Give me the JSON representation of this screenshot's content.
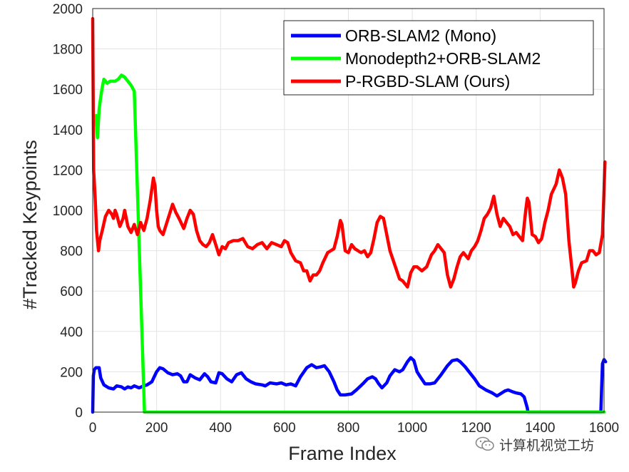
{
  "chart_data": {
    "type": "line",
    "title": "",
    "xlabel": "Frame Index",
    "ylabel": "#Tracked Keypoints",
    "xlim": [
      0,
      1600
    ],
    "ylim": [
      0,
      2000
    ],
    "xticks": [
      0,
      200,
      400,
      600,
      800,
      1000,
      1200,
      1400,
      1600
    ],
    "yticks": [
      0,
      200,
      400,
      600,
      800,
      1000,
      1200,
      1400,
      1600,
      1800,
      2000
    ],
    "grid": true,
    "legend_position": "top-right",
    "series": [
      {
        "name": "ORB-SLAM2 (Mono)",
        "color": "#0000ff",
        "points": [
          [
            0,
            0
          ],
          [
            2,
            180
          ],
          [
            5,
            210
          ],
          [
            10,
            220
          ],
          [
            20,
            220
          ],
          [
            25,
            170
          ],
          [
            35,
            135
          ],
          [
            50,
            120
          ],
          [
            65,
            115
          ],
          [
            75,
            130
          ],
          [
            90,
            125
          ],
          [
            100,
            115
          ],
          [
            110,
            125
          ],
          [
            120,
            120
          ],
          [
            130,
            130
          ],
          [
            145,
            120
          ],
          [
            160,
            130
          ],
          [
            170,
            135
          ],
          [
            185,
            150
          ],
          [
            200,
            200
          ],
          [
            210,
            220
          ],
          [
            220,
            215
          ],
          [
            235,
            195
          ],
          [
            250,
            185
          ],
          [
            265,
            190
          ],
          [
            275,
            180
          ],
          [
            285,
            150
          ],
          [
            295,
            150
          ],
          [
            305,
            185
          ],
          [
            320,
            170
          ],
          [
            335,
            160
          ],
          [
            350,
            190
          ],
          [
            360,
            175
          ],
          [
            370,
            150
          ],
          [
            385,
            145
          ],
          [
            395,
            195
          ],
          [
            405,
            190
          ],
          [
            420,
            165
          ],
          [
            435,
            150
          ],
          [
            450,
            185
          ],
          [
            465,
            195
          ],
          [
            480,
            165
          ],
          [
            495,
            150
          ],
          [
            510,
            140
          ],
          [
            530,
            135
          ],
          [
            540,
            130
          ],
          [
            555,
            145
          ],
          [
            575,
            140
          ],
          [
            590,
            145
          ],
          [
            605,
            135
          ],
          [
            620,
            140
          ],
          [
            635,
            130
          ],
          [
            650,
            175
          ],
          [
            670,
            220
          ],
          [
            685,
            235
          ],
          [
            700,
            220
          ],
          [
            715,
            225
          ],
          [
            725,
            230
          ],
          [
            740,
            200
          ],
          [
            755,
            150
          ],
          [
            765,
            110
          ],
          [
            775,
            85
          ],
          [
            790,
            85
          ],
          [
            810,
            90
          ],
          [
            825,
            110
          ],
          [
            845,
            140
          ],
          [
            860,
            165
          ],
          [
            875,
            175
          ],
          [
            885,
            165
          ],
          [
            895,
            140
          ],
          [
            905,
            120
          ],
          [
            920,
            145
          ],
          [
            930,
            180
          ],
          [
            945,
            210
          ],
          [
            960,
            200
          ],
          [
            970,
            210
          ],
          [
            985,
            250
          ],
          [
            995,
            270
          ],
          [
            1005,
            255
          ],
          [
            1015,
            200
          ],
          [
            1025,
            175
          ],
          [
            1040,
            140
          ],
          [
            1055,
            140
          ],
          [
            1070,
            145
          ],
          [
            1090,
            185
          ],
          [
            1110,
            230
          ],
          [
            1125,
            255
          ],
          [
            1140,
            260
          ],
          [
            1150,
            250
          ],
          [
            1165,
            225
          ],
          [
            1180,
            195
          ],
          [
            1195,
            165
          ],
          [
            1210,
            130
          ],
          [
            1230,
            110
          ],
          [
            1250,
            95
          ],
          [
            1265,
            80
          ],
          [
            1280,
            95
          ],
          [
            1290,
            105
          ],
          [
            1300,
            110
          ],
          [
            1315,
            100
          ],
          [
            1325,
            95
          ],
          [
            1340,
            90
          ],
          [
            1350,
            75
          ],
          [
            1360,
            20
          ],
          [
            1362,
            0
          ],
          [
            1590,
            0
          ],
          [
            1595,
            240
          ],
          [
            1600,
            260
          ],
          [
            1605,
            250
          ]
        ]
      },
      {
        "name": "Monodepth2+ORB-SLAM2",
        "color": "#00ff00",
        "points": [
          [
            10,
            1470
          ],
          [
            15,
            1360
          ],
          [
            20,
            1500
          ],
          [
            25,
            1560
          ],
          [
            30,
            1610
          ],
          [
            35,
            1650
          ],
          [
            45,
            1630
          ],
          [
            55,
            1640
          ],
          [
            70,
            1640
          ],
          [
            80,
            1650
          ],
          [
            90,
            1670
          ],
          [
            100,
            1660
          ],
          [
            110,
            1640
          ],
          [
            120,
            1620
          ],
          [
            130,
            1590
          ],
          [
            140,
            1100
          ],
          [
            150,
            600
          ],
          [
            158,
            200
          ],
          [
            162,
            0
          ],
          [
            1600,
            0
          ]
        ]
      },
      {
        "name": "P-RGBD-SLAM (Ours)",
        "color": "#ff0000",
        "points": [
          [
            0,
            1950
          ],
          [
            3,
            1200
          ],
          [
            8,
            1050
          ],
          [
            12,
            900
          ],
          [
            18,
            800
          ],
          [
            22,
            850
          ],
          [
            30,
            900
          ],
          [
            40,
            970
          ],
          [
            50,
            1000
          ],
          [
            60,
            980
          ],
          [
            65,
            960
          ],
          [
            70,
            1000
          ],
          [
            75,
            980
          ],
          [
            80,
            950
          ],
          [
            85,
            920
          ],
          [
            95,
            960
          ],
          [
            100,
            1000
          ],
          [
            105,
            960
          ],
          [
            110,
            920
          ],
          [
            120,
            890
          ],
          [
            130,
            930
          ],
          [
            140,
            880
          ],
          [
            150,
            940
          ],
          [
            160,
            900
          ],
          [
            170,
            960
          ],
          [
            180,
            1050
          ],
          [
            190,
            1160
          ],
          [
            195,
            1120
          ],
          [
            200,
            1000
          ],
          [
            205,
            920
          ],
          [
            210,
            900
          ],
          [
            220,
            880
          ],
          [
            230,
            930
          ],
          [
            240,
            980
          ],
          [
            250,
            1030
          ],
          [
            260,
            990
          ],
          [
            270,
            960
          ],
          [
            285,
            910
          ],
          [
            295,
            960
          ],
          [
            305,
            1000
          ],
          [
            315,
            980
          ],
          [
            325,
            900
          ],
          [
            335,
            850
          ],
          [
            345,
            830
          ],
          [
            355,
            820
          ],
          [
            365,
            840
          ],
          [
            375,
            880
          ],
          [
            385,
            830
          ],
          [
            395,
            780
          ],
          [
            405,
            820
          ],
          [
            415,
            810
          ],
          [
            425,
            840
          ],
          [
            440,
            850
          ],
          [
            455,
            850
          ],
          [
            470,
            860
          ],
          [
            485,
            820
          ],
          [
            500,
            810
          ],
          [
            515,
            830
          ],
          [
            530,
            840
          ],
          [
            545,
            810
          ],
          [
            560,
            840
          ],
          [
            575,
            830
          ],
          [
            590,
            820
          ],
          [
            600,
            850
          ],
          [
            610,
            840
          ],
          [
            620,
            790
          ],
          [
            635,
            750
          ],
          [
            650,
            740
          ],
          [
            660,
            700
          ],
          [
            670,
            700
          ],
          [
            680,
            650
          ],
          [
            690,
            680
          ],
          [
            700,
            680
          ],
          [
            710,
            700
          ],
          [
            720,
            740
          ],
          [
            735,
            790
          ],
          [
            745,
            800
          ],
          [
            755,
            810
          ],
          [
            765,
            870
          ],
          [
            775,
            950
          ],
          [
            780,
            930
          ],
          [
            790,
            800
          ],
          [
            800,
            790
          ],
          [
            810,
            830
          ],
          [
            820,
            810
          ],
          [
            830,
            800
          ],
          [
            840,
            790
          ],
          [
            850,
            800
          ],
          [
            860,
            770
          ],
          [
            870,
            790
          ],
          [
            880,
            860
          ],
          [
            890,
            940
          ],
          [
            900,
            970
          ],
          [
            910,
            960
          ],
          [
            920,
            880
          ],
          [
            930,
            800
          ],
          [
            945,
            730
          ],
          [
            960,
            660
          ],
          [
            970,
            650
          ],
          [
            985,
            620
          ],
          [
            995,
            690
          ],
          [
            1005,
            720
          ],
          [
            1015,
            720
          ],
          [
            1030,
            700
          ],
          [
            1045,
            720
          ],
          [
            1060,
            780
          ],
          [
            1070,
            800
          ],
          [
            1080,
            830
          ],
          [
            1090,
            810
          ],
          [
            1100,
            790
          ],
          [
            1110,
            680
          ],
          [
            1120,
            620
          ],
          [
            1130,
            660
          ],
          [
            1140,
            720
          ],
          [
            1150,
            770
          ],
          [
            1160,
            790
          ],
          [
            1175,
            760
          ],
          [
            1185,
            800
          ],
          [
            1195,
            820
          ],
          [
            1205,
            850
          ],
          [
            1215,
            900
          ],
          [
            1225,
            960
          ],
          [
            1235,
            980
          ],
          [
            1245,
            1010
          ],
          [
            1255,
            1070
          ],
          [
            1265,
            980
          ],
          [
            1275,
            920
          ],
          [
            1285,
            960
          ],
          [
            1295,
            940
          ],
          [
            1305,
            920
          ],
          [
            1315,
            880
          ],
          [
            1325,
            890
          ],
          [
            1335,
            870
          ],
          [
            1345,
            850
          ],
          [
            1355,
            1000
          ],
          [
            1360,
            1060
          ],
          [
            1365,
            1040
          ],
          [
            1370,
            960
          ],
          [
            1375,
            880
          ],
          [
            1385,
            870
          ],
          [
            1395,
            840
          ],
          [
            1405,
            860
          ],
          [
            1415,
            940
          ],
          [
            1425,
            1000
          ],
          [
            1435,
            1080
          ],
          [
            1450,
            1130
          ],
          [
            1460,
            1200
          ],
          [
            1470,
            1160
          ],
          [
            1480,
            1080
          ],
          [
            1490,
            850
          ],
          [
            1500,
            700
          ],
          [
            1505,
            620
          ],
          [
            1510,
            640
          ],
          [
            1520,
            700
          ],
          [
            1530,
            740
          ],
          [
            1545,
            750
          ],
          [
            1555,
            800
          ],
          [
            1565,
            800
          ],
          [
            1575,
            780
          ],
          [
            1585,
            790
          ],
          [
            1595,
            880
          ],
          [
            1600,
            1100
          ],
          [
            1603,
            1240
          ]
        ]
      }
    ]
  },
  "watermark": {
    "text": "计算机视觉工坊",
    "icon": "wechat-icon"
  }
}
